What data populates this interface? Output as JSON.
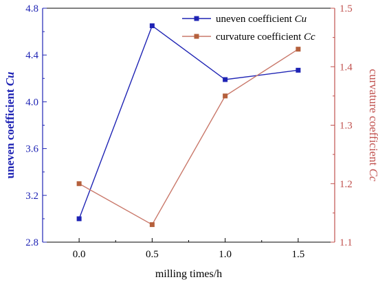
{
  "chart_data": {
    "type": "line",
    "x": [
      0.0,
      0.5,
      1.0,
      1.5
    ],
    "x_tick_labels": [
      "0.0",
      "0.5",
      "1.0",
      "1.5"
    ],
    "xlabel": "milling times/h",
    "xlim": [
      -0.25,
      1.75
    ],
    "y_left": {
      "label_main": "uneven coefficient ",
      "label_italic": "Cu",
      "lim": [
        2.8,
        4.8
      ],
      "tick_labels": [
        "2.8",
        "3.2",
        "3.6",
        "4.0",
        "4.4",
        "4.8"
      ],
      "color": "#1e23b4"
    },
    "y_right": {
      "label_main": "curvature coefficient ",
      "label_italic": "Cc",
      "lim": [
        1.1,
        1.5
      ],
      "tick_labels": [
        "1.1",
        "1.2",
        "1.3",
        "1.4",
        "1.5"
      ],
      "color": "#c0504d"
    },
    "series": [
      {
        "name_main": "uneven coefficient ",
        "name_italic": "Cu",
        "axis": "left",
        "values": [
          3.0,
          4.65,
          4.19,
          4.27
        ],
        "line_color": "#1e23b4",
        "marker_color": "#1e23b4"
      },
      {
        "name_main": "curvature coefficient ",
        "name_italic": "Cc",
        "axis": "right",
        "values": [
          1.2,
          1.13,
          1.35,
          1.43
        ],
        "line_color": "#c9786a",
        "marker_color": "#b5603c"
      }
    ],
    "grid": false,
    "legend_position": "top-right"
  }
}
